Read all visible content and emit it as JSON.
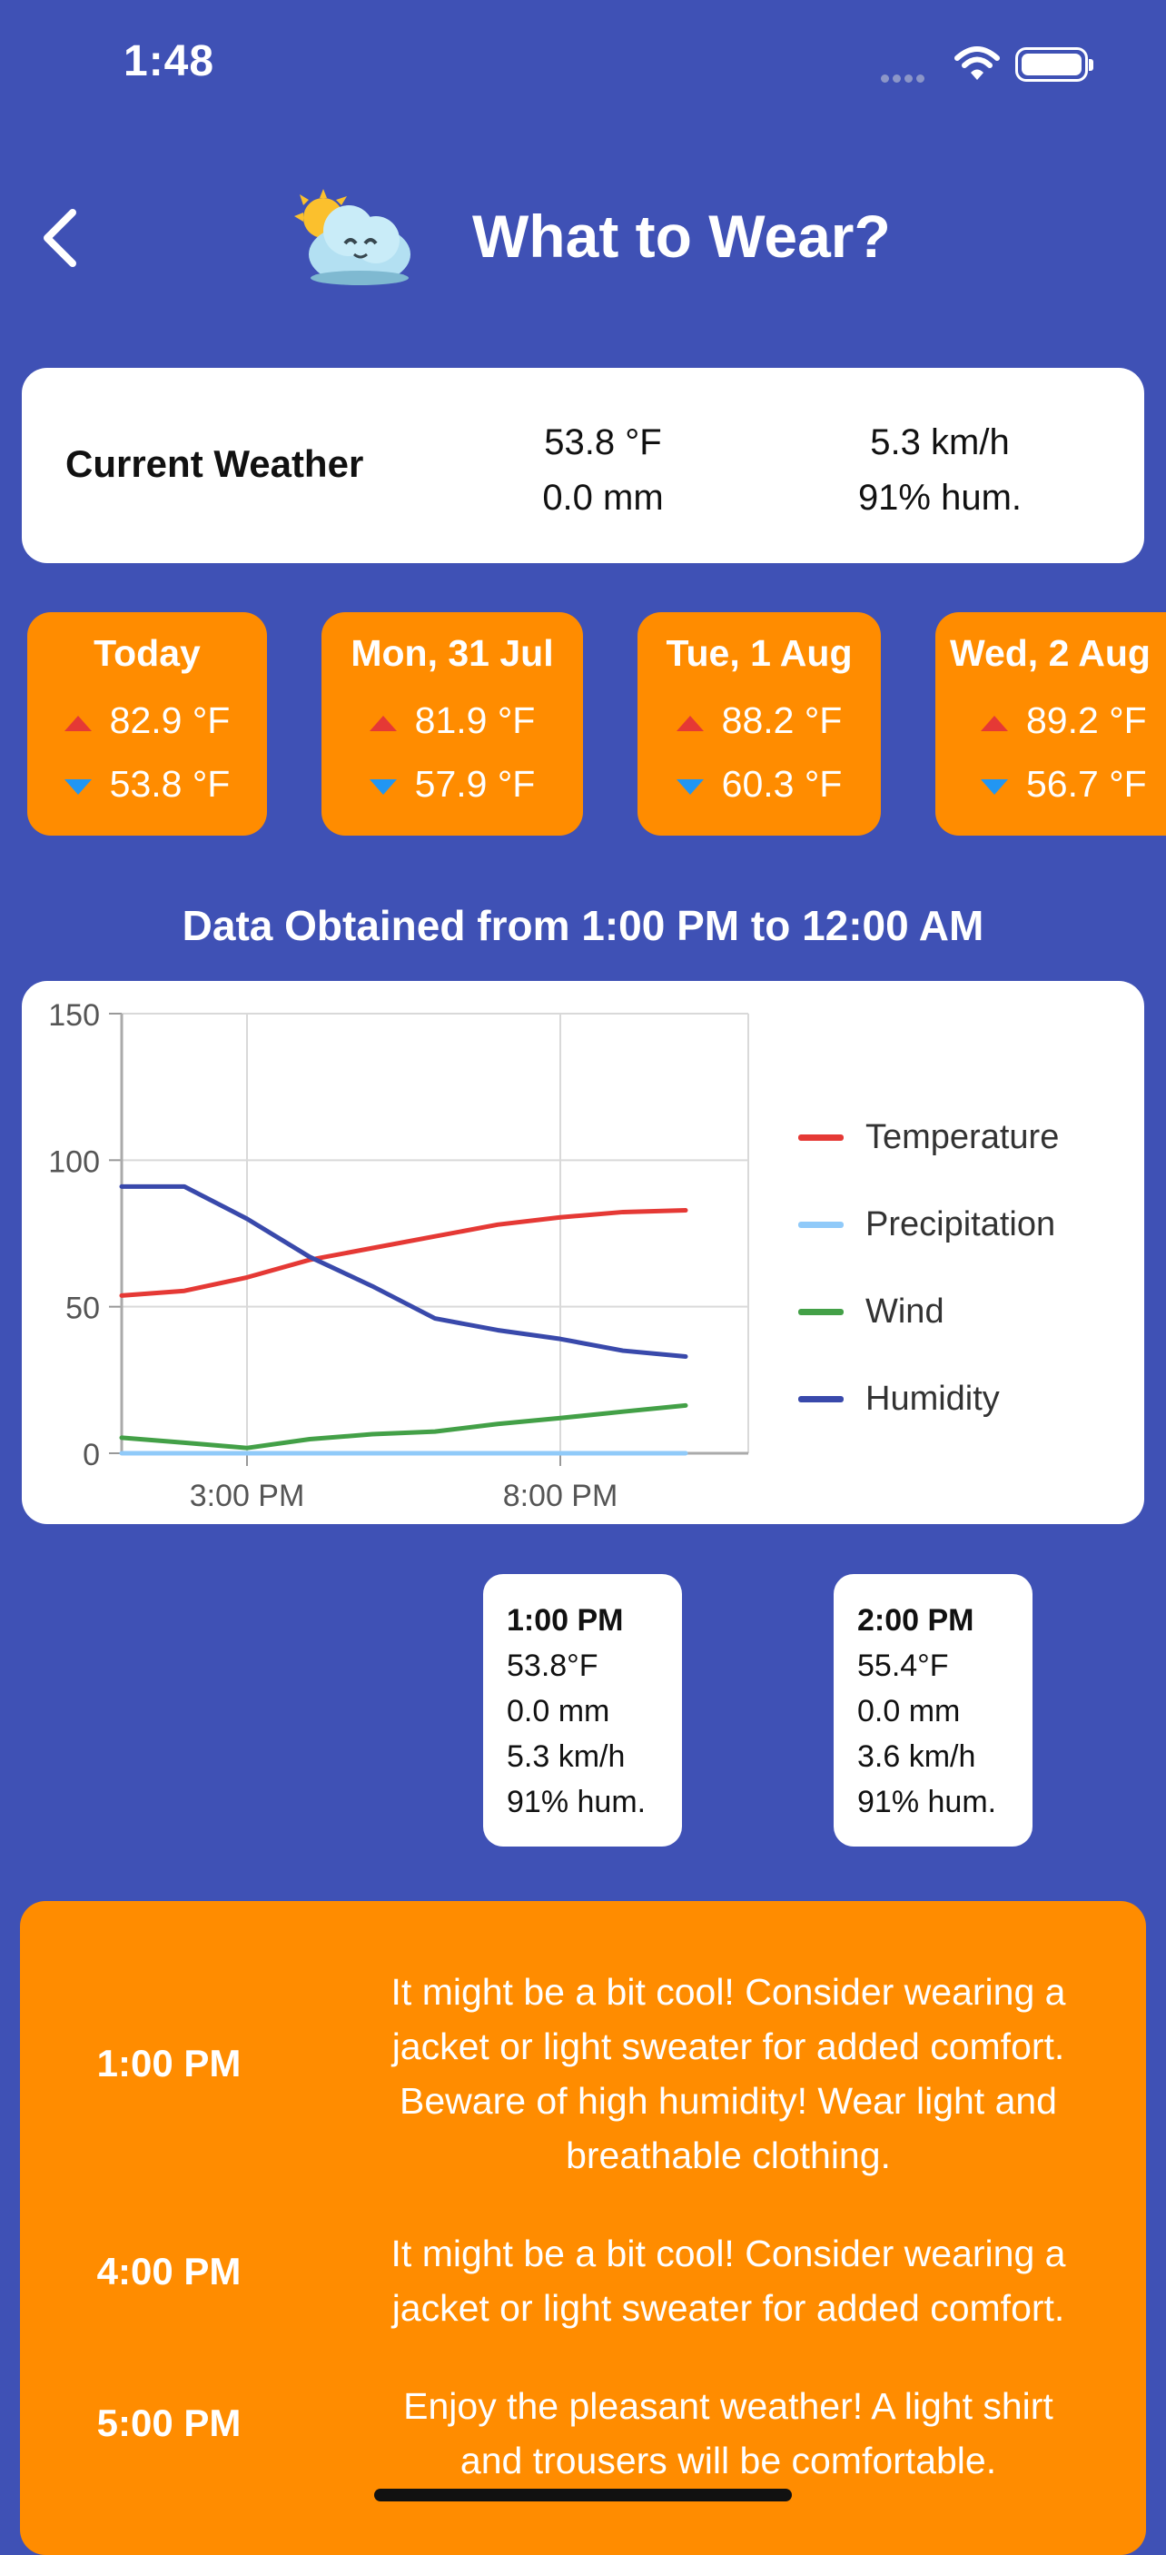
{
  "status_bar": {
    "time": "1:48"
  },
  "header": {
    "title": "What to Wear?"
  },
  "current_weather": {
    "label": "Current Weather",
    "temperature": "53.8 °F",
    "precipitation": "0.0 mm",
    "wind": "5.3 km/h",
    "humidity": "91% hum."
  },
  "forecast": [
    {
      "day": "Today",
      "high": "82.9 °F",
      "low": "53.8 °F"
    },
    {
      "day": "Mon, 31 Jul",
      "high": "81.9 °F",
      "low": "57.9 °F"
    },
    {
      "day": "Tue, 1 Aug",
      "high": "88.2 °F",
      "low": "60.3 °F"
    },
    {
      "day": "Wed, 2 Aug",
      "high": "89.2 °F",
      "low": "56.7 °F"
    }
  ],
  "data_range": "Data Obtained from 1:00 PM to 12:00 AM",
  "chart_data": {
    "type": "line",
    "x_hours": [
      13,
      14,
      15,
      16,
      17,
      18,
      19,
      20,
      21,
      22
    ],
    "x_ticks": [
      {
        "hour": 15,
        "label": "3:00 PM"
      },
      {
        "hour": 20,
        "label": "8:00 PM"
      }
    ],
    "xlim": [
      13,
      23
    ],
    "ylim": [
      0,
      150
    ],
    "y_ticks": [
      0,
      50,
      100,
      150
    ],
    "grid": true,
    "legend_position": "right",
    "series": [
      {
        "name": "Temperature",
        "color": "#e53935",
        "values": [
          53.8,
          55.4,
          60,
          66,
          70,
          74,
          78,
          80.5,
          82.3,
          82.9
        ]
      },
      {
        "name": "Precipitation",
        "color": "#90caf9",
        "values": [
          0,
          0,
          0,
          0,
          0,
          0,
          0,
          0,
          0,
          0
        ]
      },
      {
        "name": "Wind",
        "color": "#43a047",
        "values": [
          5.3,
          3.6,
          1.8,
          4.8,
          6.5,
          7.4,
          10,
          12,
          14.2,
          16.3
        ]
      },
      {
        "name": "Humidity",
        "color": "#3949ab",
        "values": [
          91,
          91,
          80,
          67,
          57,
          46,
          42,
          39,
          35,
          33
        ]
      }
    ]
  },
  "hourly": [
    {
      "time": "1:00 PM",
      "temp": "53.8°F",
      "precip": "0.0 mm",
      "wind": "5.3 km/h",
      "humidity": "91% hum."
    },
    {
      "time": "2:00 PM",
      "temp": "55.4°F",
      "precip": "0.0 mm",
      "wind": "3.6 km/h",
      "humidity": "91% hum."
    }
  ],
  "advice": [
    {
      "time": "1:00 PM",
      "lines": [
        "It might be a bit cool! Consider wearing a",
        "jacket or light sweater for added comfort.",
        "Beware of high humidity! Wear light and",
        "breathable clothing."
      ]
    },
    {
      "time": "4:00 PM",
      "lines": [
        "It might be a bit cool! Consider wearing a",
        "jacket or light sweater for added comfort."
      ]
    },
    {
      "time": "5:00 PM",
      "lines": [
        "Enjoy the pleasant weather! A light shirt",
        "and trousers will be comfortable."
      ]
    }
  ]
}
